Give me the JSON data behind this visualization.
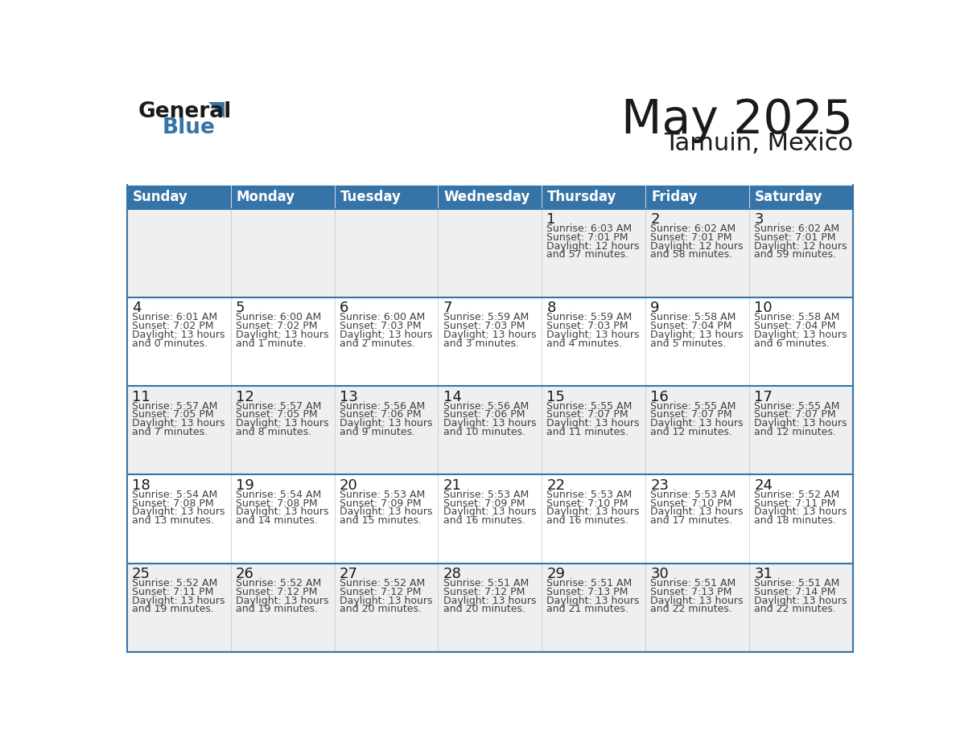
{
  "title": "May 2025",
  "subtitle": "Tamuin, Mexico",
  "header_bg": "#3674a8",
  "header_text": "#FFFFFF",
  "row_bg_odd": "#EFEFEF",
  "row_bg_even": "#FFFFFF",
  "border_color": "#3674a8",
  "text_color": "#404040",
  "day_number_color": "#1A1A1A",
  "days_of_week": [
    "Sunday",
    "Monday",
    "Tuesday",
    "Wednesday",
    "Thursday",
    "Friday",
    "Saturday"
  ],
  "weeks": [
    [
      {
        "day": "",
        "sunrise": "",
        "sunset": "",
        "daylight": ""
      },
      {
        "day": "",
        "sunrise": "",
        "sunset": "",
        "daylight": ""
      },
      {
        "day": "",
        "sunrise": "",
        "sunset": "",
        "daylight": ""
      },
      {
        "day": "",
        "sunrise": "",
        "sunset": "",
        "daylight": ""
      },
      {
        "day": "1",
        "sunrise": "6:03 AM",
        "sunset": "7:01 PM",
        "daylight": "12 hours and 57 minutes."
      },
      {
        "day": "2",
        "sunrise": "6:02 AM",
        "sunset": "7:01 PM",
        "daylight": "12 hours and 58 minutes."
      },
      {
        "day": "3",
        "sunrise": "6:02 AM",
        "sunset": "7:01 PM",
        "daylight": "12 hours and 59 minutes."
      }
    ],
    [
      {
        "day": "4",
        "sunrise": "6:01 AM",
        "sunset": "7:02 PM",
        "daylight": "13 hours and 0 minutes."
      },
      {
        "day": "5",
        "sunrise": "6:00 AM",
        "sunset": "7:02 PM",
        "daylight": "13 hours and 1 minute."
      },
      {
        "day": "6",
        "sunrise": "6:00 AM",
        "sunset": "7:03 PM",
        "daylight": "13 hours and 2 minutes."
      },
      {
        "day": "7",
        "sunrise": "5:59 AM",
        "sunset": "7:03 PM",
        "daylight": "13 hours and 3 minutes."
      },
      {
        "day": "8",
        "sunrise": "5:59 AM",
        "sunset": "7:03 PM",
        "daylight": "13 hours and 4 minutes."
      },
      {
        "day": "9",
        "sunrise": "5:58 AM",
        "sunset": "7:04 PM",
        "daylight": "13 hours and 5 minutes."
      },
      {
        "day": "10",
        "sunrise": "5:58 AM",
        "sunset": "7:04 PM",
        "daylight": "13 hours and 6 minutes."
      }
    ],
    [
      {
        "day": "11",
        "sunrise": "5:57 AM",
        "sunset": "7:05 PM",
        "daylight": "13 hours and 7 minutes."
      },
      {
        "day": "12",
        "sunrise": "5:57 AM",
        "sunset": "7:05 PM",
        "daylight": "13 hours and 8 minutes."
      },
      {
        "day": "13",
        "sunrise": "5:56 AM",
        "sunset": "7:06 PM",
        "daylight": "13 hours and 9 minutes."
      },
      {
        "day": "14",
        "sunrise": "5:56 AM",
        "sunset": "7:06 PM",
        "daylight": "13 hours and 10 minutes."
      },
      {
        "day": "15",
        "sunrise": "5:55 AM",
        "sunset": "7:07 PM",
        "daylight": "13 hours and 11 minutes."
      },
      {
        "day": "16",
        "sunrise": "5:55 AM",
        "sunset": "7:07 PM",
        "daylight": "13 hours and 12 minutes."
      },
      {
        "day": "17",
        "sunrise": "5:55 AM",
        "sunset": "7:07 PM",
        "daylight": "13 hours and 12 minutes."
      }
    ],
    [
      {
        "day": "18",
        "sunrise": "5:54 AM",
        "sunset": "7:08 PM",
        "daylight": "13 hours and 13 minutes."
      },
      {
        "day": "19",
        "sunrise": "5:54 AM",
        "sunset": "7:08 PM",
        "daylight": "13 hours and 14 minutes."
      },
      {
        "day": "20",
        "sunrise": "5:53 AM",
        "sunset": "7:09 PM",
        "daylight": "13 hours and 15 minutes."
      },
      {
        "day": "21",
        "sunrise": "5:53 AM",
        "sunset": "7:09 PM",
        "daylight": "13 hours and 16 minutes."
      },
      {
        "day": "22",
        "sunrise": "5:53 AM",
        "sunset": "7:10 PM",
        "daylight": "13 hours and 16 minutes."
      },
      {
        "day": "23",
        "sunrise": "5:53 AM",
        "sunset": "7:10 PM",
        "daylight": "13 hours and 17 minutes."
      },
      {
        "day": "24",
        "sunrise": "5:52 AM",
        "sunset": "7:11 PM",
        "daylight": "13 hours and 18 minutes."
      }
    ],
    [
      {
        "day": "25",
        "sunrise": "5:52 AM",
        "sunset": "7:11 PM",
        "daylight": "13 hours and 19 minutes."
      },
      {
        "day": "26",
        "sunrise": "5:52 AM",
        "sunset": "7:12 PM",
        "daylight": "13 hours and 19 minutes."
      },
      {
        "day": "27",
        "sunrise": "5:52 AM",
        "sunset": "7:12 PM",
        "daylight": "13 hours and 20 minutes."
      },
      {
        "day": "28",
        "sunrise": "5:51 AM",
        "sunset": "7:12 PM",
        "daylight": "13 hours and 20 minutes."
      },
      {
        "day": "29",
        "sunrise": "5:51 AM",
        "sunset": "7:13 PM",
        "daylight": "13 hours and 21 minutes."
      },
      {
        "day": "30",
        "sunrise": "5:51 AM",
        "sunset": "7:13 PM",
        "daylight": "13 hours and 22 minutes."
      },
      {
        "day": "31",
        "sunrise": "5:51 AM",
        "sunset": "7:14 PM",
        "daylight": "13 hours and 22 minutes."
      }
    ]
  ]
}
